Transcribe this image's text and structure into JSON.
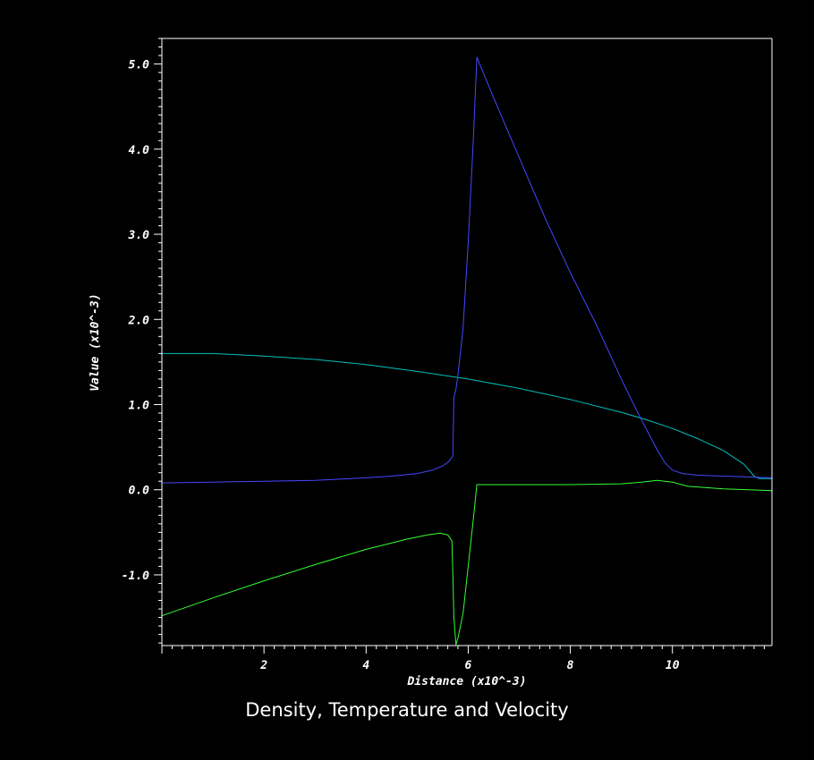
{
  "chart_data": {
    "type": "line",
    "title": "Density, Temperature and Velocity",
    "xlabel": "Distance (x10^-3)",
    "ylabel": "Value (x10^-3)",
    "xlim": [
      0,
      11.95
    ],
    "ylim": [
      -1.83,
      5.3
    ],
    "xticks": [
      {
        "v": 2,
        "label": "2"
      },
      {
        "v": 4,
        "label": "4"
      },
      {
        "v": 6,
        "label": "6"
      },
      {
        "v": 8,
        "label": "8"
      },
      {
        "v": 10,
        "label": "10"
      }
    ],
    "yticks": [
      {
        "v": -1.0,
        "label": "-1.0"
      },
      {
        "v": 0.0,
        "label": "0.0"
      },
      {
        "v": 1.0,
        "label": "1.0"
      },
      {
        "v": 2.0,
        "label": "2.0"
      },
      {
        "v": 3.0,
        "label": "3.0"
      },
      {
        "v": 4.0,
        "label": "4.0"
      },
      {
        "v": 5.0,
        "label": "5.0"
      }
    ],
    "grid": false,
    "background": "#000000",
    "axis_color": "#ffffff",
    "series": [
      {
        "color": "#00bfbf",
        "x": [
          0,
          1,
          2,
          3,
          4,
          5,
          6,
          7,
          8,
          9,
          9.5,
          10,
          10.5,
          11,
          11.4,
          11.6,
          11.7,
          11.95
        ],
        "y": [
          1.6,
          1.6,
          1.57,
          1.53,
          1.47,
          1.39,
          1.3,
          1.19,
          1.06,
          0.91,
          0.82,
          0.72,
          0.6,
          0.46,
          0.3,
          0.16,
          0.13,
          0.13
        ]
      },
      {
        "color": "#4646ff",
        "x": [
          0,
          1,
          2,
          3,
          4,
          4.5,
          5,
          5.3,
          5.5,
          5.62,
          5.7,
          5.72,
          5.76,
          5.8,
          5.9,
          6.0,
          6.1,
          6.17,
          6.5,
          7,
          7.5,
          8,
          8.5,
          9,
          9.3,
          9.5,
          9.7,
          9.85,
          10,
          10.2,
          10.5,
          11,
          11.5,
          11.95
        ],
        "y": [
          0.08,
          0.09,
          0.1,
          0.11,
          0.14,
          0.16,
          0.19,
          0.23,
          0.28,
          0.33,
          0.4,
          1.08,
          1.18,
          1.35,
          1.9,
          2.9,
          4.1,
          5.08,
          4.6,
          3.9,
          3.2,
          2.55,
          1.95,
          1.3,
          0.93,
          0.7,
          0.47,
          0.32,
          0.23,
          0.19,
          0.17,
          0.16,
          0.15,
          0.14
        ]
      },
      {
        "color": "#33ff33",
        "x": [
          0,
          1,
          2,
          3,
          4,
          4.8,
          5.2,
          5.45,
          5.6,
          5.68,
          5.7,
          5.72,
          5.76,
          5.8,
          5.9,
          6.0,
          6.1,
          6.17,
          7,
          8,
          9,
          9.4,
          9.7,
          10,
          10.3,
          11,
          11.5,
          11.95
        ],
        "y": [
          -1.48,
          -1.27,
          -1.07,
          -0.88,
          -0.7,
          -0.58,
          -0.53,
          -0.51,
          -0.53,
          -0.6,
          -1.0,
          -1.5,
          -1.82,
          -1.74,
          -1.45,
          -0.9,
          -0.35,
          0.06,
          0.06,
          0.06,
          0.07,
          0.09,
          0.11,
          0.09,
          0.04,
          0.01,
          0.0,
          -0.01
        ]
      }
    ]
  }
}
